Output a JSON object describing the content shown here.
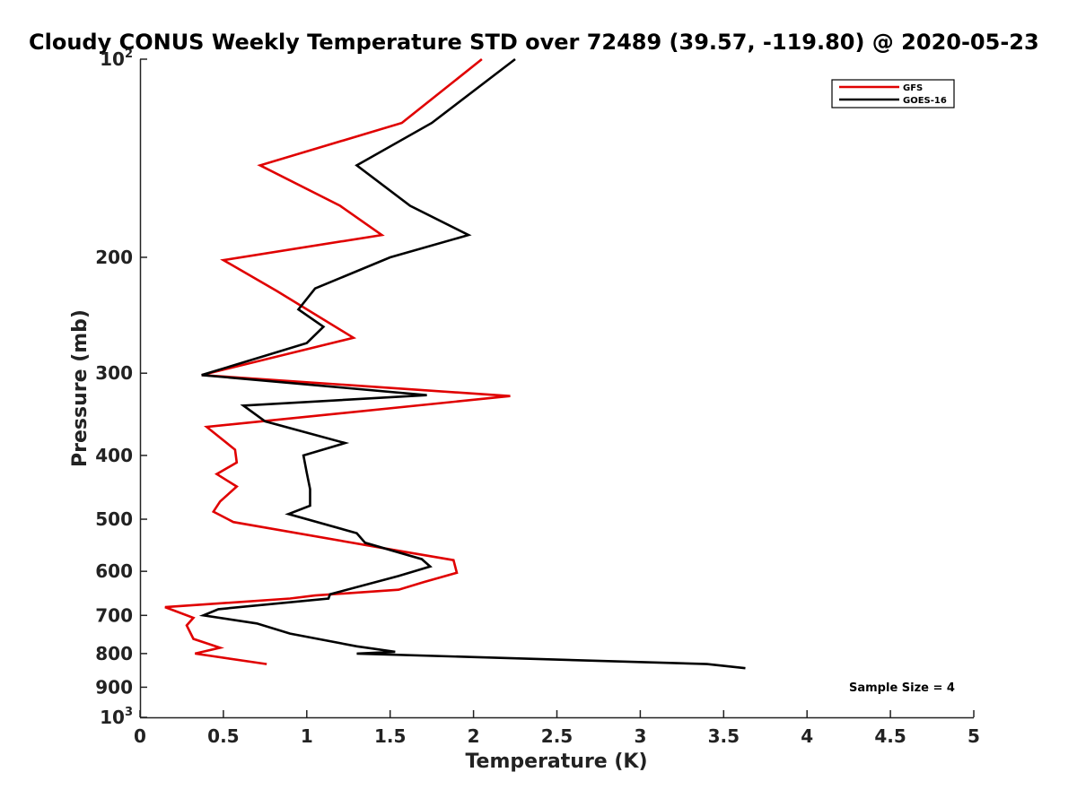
{
  "chart_data": {
    "type": "line",
    "title": "Cloudy CONUS Weekly Temperature STD over 72489 (39.57, -119.80) @ 2020-05-23",
    "xlabel": "Temperature (K)",
    "ylabel": "Pressure (mb)",
    "xlim": [
      0,
      5
    ],
    "ylim": [
      100,
      1000
    ],
    "y_scale": "log",
    "y_reversed": true,
    "grid": false,
    "legend_position": "top-right",
    "x_ticks": [
      "0",
      "0.5",
      "1",
      "1.5",
      "2",
      "2.5",
      "3",
      "3.5",
      "4",
      "4.5",
      "5"
    ],
    "y_ticks": [
      {
        "value": 100,
        "base": "10",
        "exp": "2"
      },
      {
        "value": 200,
        "label": "200"
      },
      {
        "value": 300,
        "label": "300"
      },
      {
        "value": 400,
        "label": "400"
      },
      {
        "value": 500,
        "label": "500"
      },
      {
        "value": 600,
        "label": "600"
      },
      {
        "value": 700,
        "label": "700"
      },
      {
        "value": 800,
        "label": "800"
      },
      {
        "value": 900,
        "label": "900"
      },
      {
        "value": 1000,
        "base": "10",
        "exp": "3"
      }
    ],
    "series": [
      {
        "name": "GFS",
        "color": "#e00000",
        "x": [
          2.05,
          1.57,
          0.72,
          1.2,
          1.45,
          0.5,
          0.82,
          1.28,
          0.37,
          2.22,
          0.4,
          0.57,
          0.58,
          0.46,
          0.58,
          0.48,
          0.44,
          0.56,
          1.58,
          1.88,
          1.9,
          1.7,
          1.55,
          1.05,
          0.9,
          0.15,
          0.32,
          0.28,
          0.32,
          0.48,
          0.33,
          0.76
        ],
        "y": [
          100,
          125,
          145,
          167,
          185,
          202,
          225,
          265,
          302,
          325,
          362,
          392,
          410,
          427,
          446,
          470,
          487,
          505,
          560,
          577,
          603,
          623,
          640,
          653,
          660,
          680,
          706,
          725,
          760,
          784,
          800,
          830
        ]
      },
      {
        "name": "GOES-16",
        "color": "#000000",
        "x": [
          2.25,
          1.75,
          1.3,
          1.62,
          1.97,
          1.5,
          1.05,
          0.95,
          1.1,
          1.0,
          0.37,
          1.72,
          0.62,
          0.75,
          1.23,
          0.98,
          1.0,
          1.02,
          1.02,
          0.89,
          1.3,
          1.35,
          1.69,
          1.74,
          1.55,
          1.14,
          1.13,
          0.47,
          0.38,
          0.7,
          0.9,
          1.3,
          1.53,
          1.3,
          3.4,
          3.63
        ],
        "y": [
          100,
          125,
          145,
          167,
          185,
          200,
          223,
          240,
          255,
          270,
          302,
          324,
          336,
          355,
          383,
          400,
          425,
          450,
          477,
          491,
          525,
          543,
          575,
          590,
          610,
          650,
          660,
          685,
          700,
          720,
          746,
          780,
          795,
          800,
          830,
          842
        ]
      }
    ],
    "annotation": "Sample Size = 4"
  }
}
